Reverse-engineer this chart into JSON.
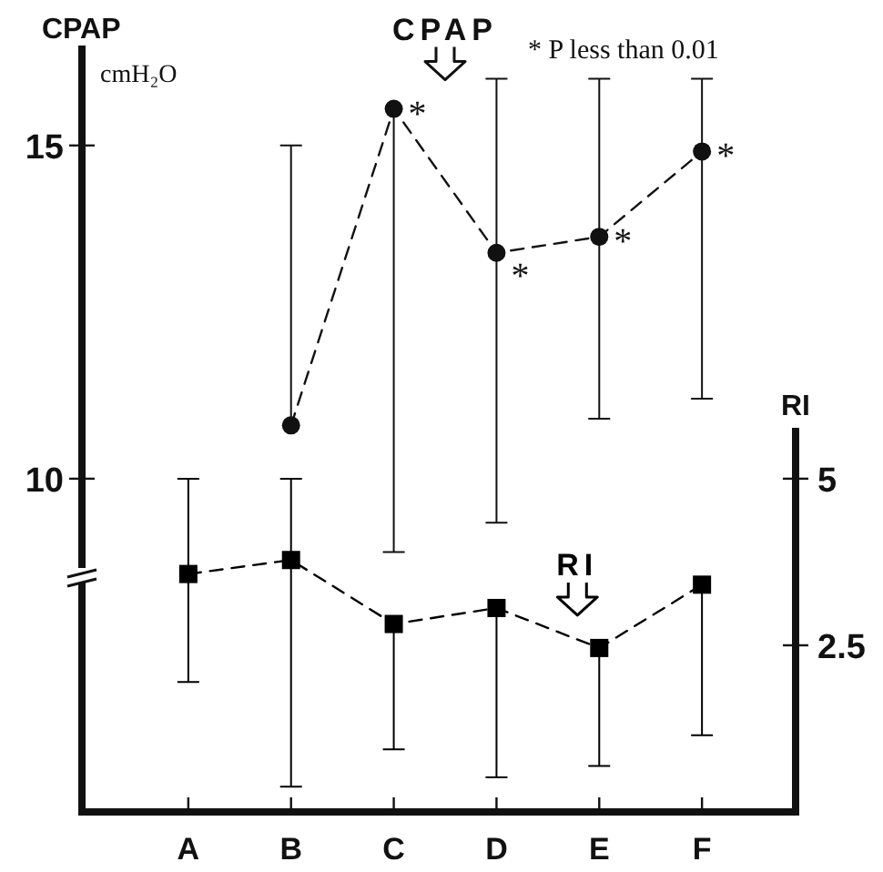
{
  "chart_data": {
    "type": "line",
    "ylabel": "CPAP",
    "y2label": "RI",
    "categories": [
      "A",
      "B",
      "C",
      "D",
      "E",
      "F"
    ],
    "series": [
      {
        "name": "CPAP",
        "color": "#111111",
        "marker": "circle",
        "line_style": "dashed",
        "values": [
          null,
          10.8,
          15.55,
          13.39,
          13.63,
          14.91
        ],
        "errors": [
          null,
          [
            10.8,
            15.0
          ],
          [
            8.9,
            15.55
          ],
          [
            9.34,
            16.0
          ],
          [
            10.9,
            16.0
          ],
          [
            11.2,
            16.0
          ]
        ]
      },
      {
        "name": "RI",
        "color": "#000000",
        "axis": "y2",
        "marker": "square",
        "line_style": "dashed",
        "values": [
          3.57,
          3.78,
          2.82,
          3.06,
          2.46,
          3.41
        ],
        "errors": [
          [
            1.95,
            5.0
          ],
          [
            0.38,
            5.0
          ],
          [
            0.94,
            2.82
          ],
          [
            0.52,
            3.06
          ],
          [
            0.69,
            2.46
          ],
          [
            1.15,
            3.41
          ]
        ]
      }
    ],
    "ylim": [
      5,
      16.5
    ],
    "yticks": [
      10,
      15
    ],
    "y2lim": [
      0,
      11.5
    ],
    "y2ticks": [
      2.5,
      5
    ],
    "annotations": [
      "cmH₂O",
      "* P less than 0.01",
      {
        "text": "*",
        "x": "C",
        "y": 15.55
      },
      {
        "text": "*",
        "x": "D",
        "y": 13.39
      },
      {
        "text": "*",
        "x": "E",
        "y": 13.63
      },
      {
        "text": "*",
        "x": "F",
        "y": 14.91
      }
    ],
    "grid": false,
    "legend": false
  }
}
